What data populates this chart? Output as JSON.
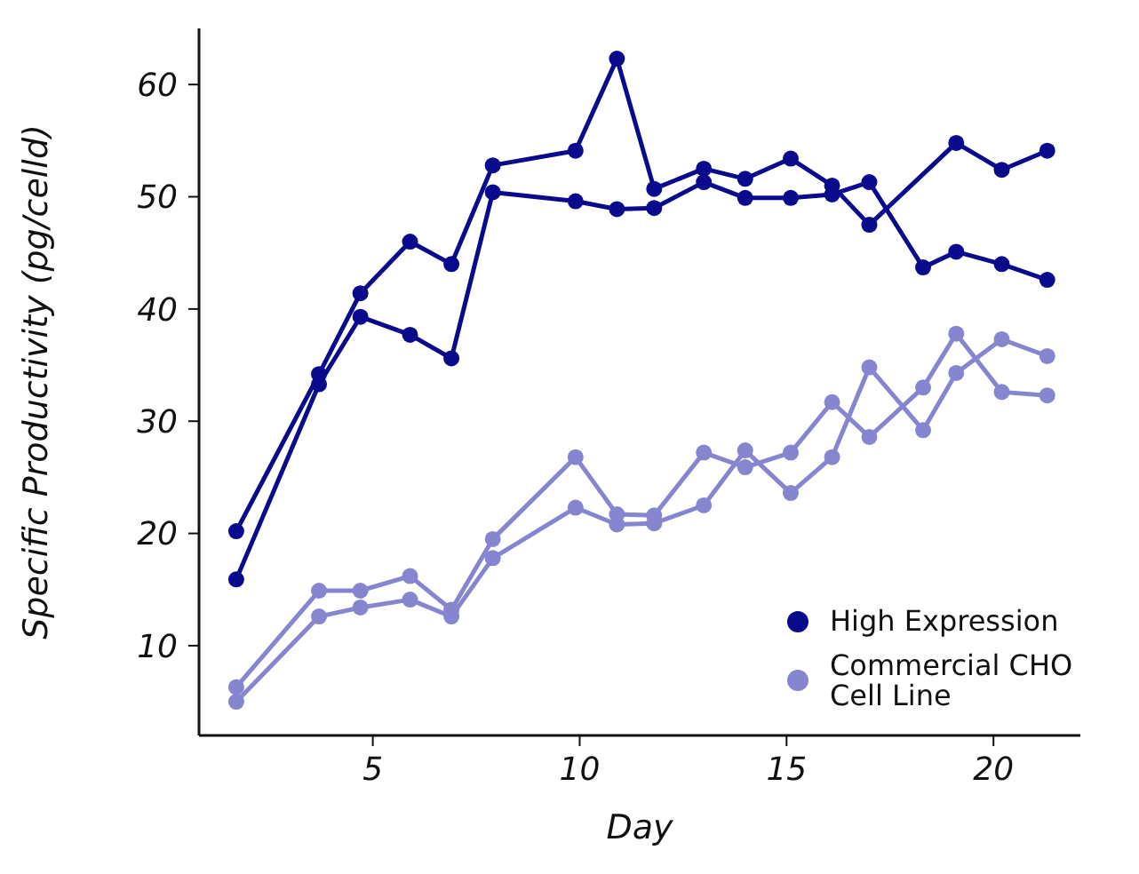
{
  "chart_data": {
    "type": "line",
    "xlabel": "Day",
    "ylabel": "Specific Productivity (pg/celld)",
    "xlim": [
      0.8,
      22.1
    ],
    "xticks": [
      5,
      10,
      15,
      20
    ],
    "ylim": [
      2,
      65
    ],
    "yticks": [
      10,
      20,
      30,
      40,
      50,
      60
    ],
    "grid": false,
    "legend": "bottom right",
    "marker": "circle",
    "line_style": "solid",
    "series": [
      {
        "name": "High Expression",
        "color": "#0a0a8c",
        "x": [
          1.7,
          3.7,
          4.7,
          5.9,
          6.9,
          7.9,
          9.9,
          10.9,
          11.8,
          13.0,
          14.0,
          15.1,
          16.1,
          17.0,
          19.1,
          20.2,
          21.3
        ],
        "values": [
          20.2,
          34.2,
          41.4,
          46.0,
          44.0,
          52.8,
          54.1,
          62.3,
          50.7,
          52.5,
          51.6,
          53.4,
          51.0,
          47.5,
          54.8,
          52.4,
          54.1
        ]
      },
      {
        "color": "#0a0a8c",
        "x": [
          1.7,
          3.7,
          4.7,
          5.9,
          6.9,
          7.9,
          9.9,
          10.9,
          11.8,
          13.0,
          14.0,
          15.1,
          16.1,
          17.0,
          18.3,
          19.1,
          20.2,
          21.3
        ],
        "values": [
          15.9,
          33.3,
          39.3,
          37.7,
          35.6,
          50.4,
          49.6,
          48.9,
          49.0,
          51.3,
          49.9,
          49.9,
          50.2,
          51.3,
          43.7,
          45.1,
          44.0,
          42.6
        ]
      },
      {
        "name": "Commercial CHO Cell Line",
        "color": "#8585d0",
        "x": [
          1.7,
          3.7,
          4.7,
          5.9,
          6.9,
          7.9,
          9.9,
          10.9,
          11.8,
          13.0,
          14.0,
          15.1,
          16.1,
          17.0,
          18.3,
          19.1,
          20.2,
          21.3
        ],
        "values": [
          6.3,
          14.9,
          14.9,
          16.2,
          13.2,
          19.5,
          26.8,
          21.7,
          21.6,
          27.2,
          25.9,
          27.2,
          31.7,
          28.6,
          33.0,
          37.8,
          32.6,
          32.3
        ]
      },
      {
        "color": "#8585d0",
        "x": [
          1.7,
          3.7,
          4.7,
          5.9,
          6.9,
          7.9,
          9.9,
          10.9,
          11.8,
          13.0,
          14.0,
          15.1,
          16.1,
          17.0,
          18.3,
          19.1,
          20.2,
          21.3
        ],
        "values": [
          5.0,
          12.6,
          13.4,
          14.1,
          12.6,
          17.8,
          22.3,
          20.8,
          20.9,
          22.5,
          27.4,
          23.6,
          26.8,
          34.8,
          29.2,
          34.3,
          37.3,
          35.8
        ]
      }
    ]
  }
}
